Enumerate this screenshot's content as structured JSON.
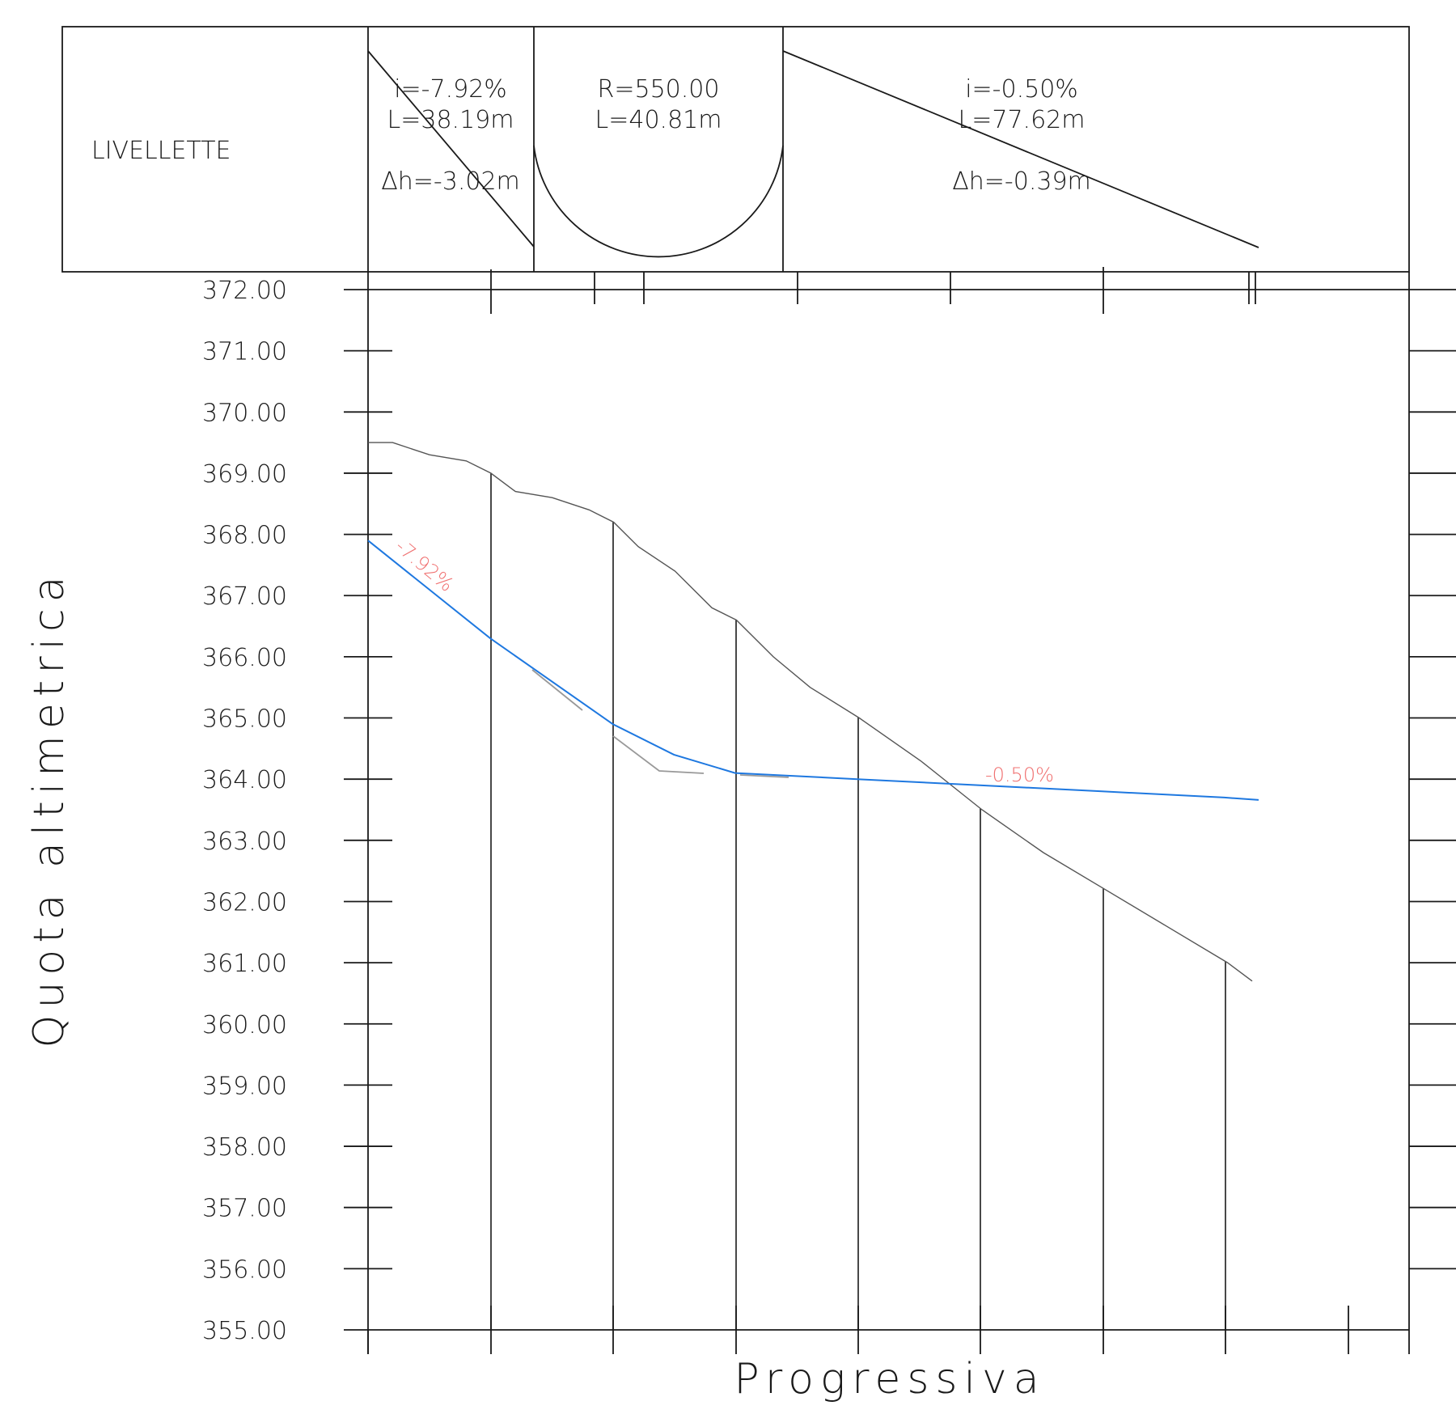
{
  "header_band": {
    "title": "LIVELLETTE",
    "segments": [
      {
        "kind": "grade",
        "line1": "i=-7.92%",
        "line2": "L=38.19m",
        "line3": "Δh=-3.02m"
      },
      {
        "kind": "vertical-curve",
        "line1": "R=550.00",
        "line2": "L=40.81m"
      },
      {
        "kind": "grade",
        "line1": "i=-0.50%",
        "line2": "L=77.62m",
        "line3": "Δh=-0.39m"
      }
    ]
  },
  "axes": {
    "ylabel": "Quota altimetrica",
    "xlabel": "Progressiva",
    "yticks": [
      "372.00",
      "371.00",
      "370.00",
      "369.00",
      "368.00",
      "367.00",
      "366.00",
      "365.00",
      "364.00",
      "363.00",
      "362.00",
      "361.00",
      "360.00",
      "359.00",
      "358.00",
      "357.00",
      "356.00",
      "355.00"
    ]
  },
  "grade_labels": {
    "first": "-7.92%",
    "second": "-0.50%"
  },
  "colors": {
    "ink": "#1a1a1a",
    "design_line": "#1e78e0",
    "grade_label": "#f07070",
    "terrain": "#555555",
    "construction": "#999999"
  },
  "chart_data": {
    "type": "line",
    "ylabel": "Quota altimetrica",
    "xlabel": "Progressiva",
    "ylim": [
      355,
      372
    ],
    "x_unit": "m",
    "xlim": [
      0,
      85
    ],
    "grid": false,
    "series": [
      {
        "role": "terrain",
        "x": [
          0,
          2,
          5,
          8,
          10,
          12,
          15,
          18,
          20,
          22,
          25,
          28,
          30,
          33,
          36,
          40,
          45,
          50,
          55,
          60,
          65,
          70,
          72
        ],
        "values": [
          369.5,
          369.5,
          369.3,
          369.2,
          369.0,
          368.7,
          368.6,
          368.4,
          368.2,
          367.8,
          367.4,
          366.8,
          366.6,
          366.0,
          365.5,
          365.0,
          364.3,
          363.5,
          362.8,
          362.2,
          361.6,
          361.0,
          360.7
        ]
      },
      {
        "role": "design-grade",
        "x": [
          0,
          10,
          20,
          25,
          30,
          40,
          50,
          60,
          70,
          72.8
        ],
        "values": [
          367.9,
          366.3,
          364.9,
          364.4,
          364.1,
          364.0,
          363.9,
          363.8,
          363.7,
          363.66
        ]
      }
    ],
    "stations_x": [
      0,
      10,
      20,
      30,
      40,
      50,
      60,
      70,
      80
    ]
  }
}
